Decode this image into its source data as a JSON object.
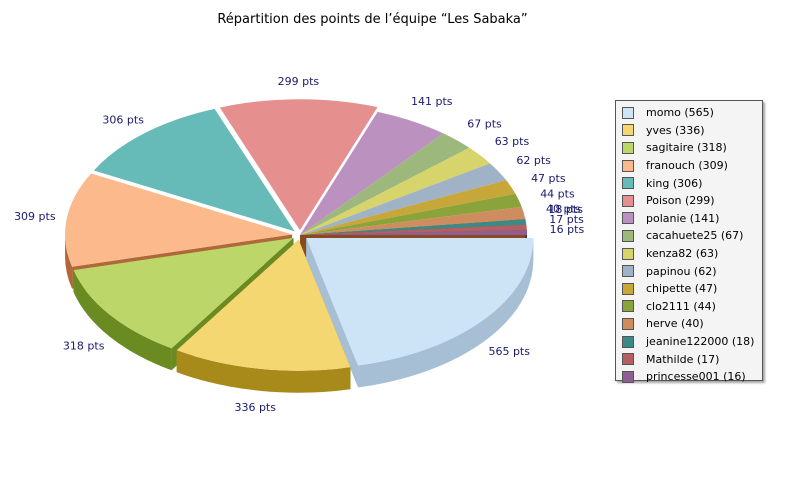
{
  "chart_data": {
    "type": "pie",
    "title": "Répartition des points de l’équipe “Les Sabaka”",
    "slices": [
      {
        "label": "momo",
        "value": 565,
        "legend": "momo (565)",
        "data_label": "565 pts",
        "color": "#cde4f7",
        "side": "#a7bfd5"
      },
      {
        "label": "yves",
        "value": 336,
        "legend": "yves (336)",
        "data_label": "336 pts",
        "color": "#f5d771",
        "side": "#a88a1a"
      },
      {
        "label": "sagitaire",
        "value": 318,
        "legend": "sagitaire (318)",
        "data_label": "318 pts",
        "color": "#bdd66a",
        "side": "#6a8a22"
      },
      {
        "label": "franouch",
        "value": 309,
        "legend": "franouch (309)",
        "data_label": "309 pts",
        "color": "#fbb98c",
        "side": "#b0683a"
      },
      {
        "label": "king",
        "value": 306,
        "legend": "king (306)",
        "data_label": "306 pts",
        "color": "#66bab8",
        "side": "#0e6764"
      },
      {
        "label": "Poison",
        "value": 299,
        "legend": "Poison (299)",
        "data_label": "299 pts",
        "color": "#e58f8f",
        "side": "#8c3535"
      },
      {
        "label": "polanie",
        "value": 141,
        "legend": "polanie (141)",
        "data_label": "141 pts",
        "color": "#bb92bf",
        "side": "#5e3864"
      },
      {
        "label": "cacahuete25",
        "value": 67,
        "legend": "cacahuete25 (67)",
        "data_label": "67 pts",
        "color": "#9db87c",
        "side": "#4c6a2e"
      },
      {
        "label": "kenza82",
        "value": 63,
        "legend": "kenza82 (63)",
        "data_label": "63 pts",
        "color": "#d7d46c",
        "side": "#87851a"
      },
      {
        "label": "papinou",
        "value": 62,
        "legend": "papinou (62)",
        "data_label": "62 pts",
        "color": "#9fb2c6",
        "side": "#4c6178"
      },
      {
        "label": "chipette",
        "value": 47,
        "legend": "chipette (47)",
        "data_label": "47 pts",
        "color": "#c7a63a",
        "side": "#7a5f0c"
      },
      {
        "label": "clo2111",
        "value": 44,
        "legend": "clo2111 (44)",
        "data_label": "44 pts",
        "color": "#8aa33a",
        "side": "#4f6614"
      },
      {
        "label": "herve",
        "value": 40,
        "legend": "herve (40)",
        "data_label": "40 pts",
        "color": "#cf8c5e",
        "side": "#8a4a20"
      },
      {
        "label": "jeanine122000",
        "value": 18,
        "legend": "jeanine122000 (18)",
        "data_label": "18 pts",
        "color": "#3b8a88",
        "side": "#184e4c"
      },
      {
        "label": "Mathilde",
        "value": 17,
        "legend": "Mathilde (17)",
        "data_label": "17 pts",
        "color": "#b55f62",
        "side": "#6b2a2c"
      },
      {
        "label": "princesse001",
        "value": 16,
        "legend": "princesse001 (16)",
        "data_label": "16 pts",
        "color": "#8e5f90",
        "side": "#4e2a50"
      }
    ],
    "legend_position": "right",
    "label_color": "#1a1a6e"
  }
}
